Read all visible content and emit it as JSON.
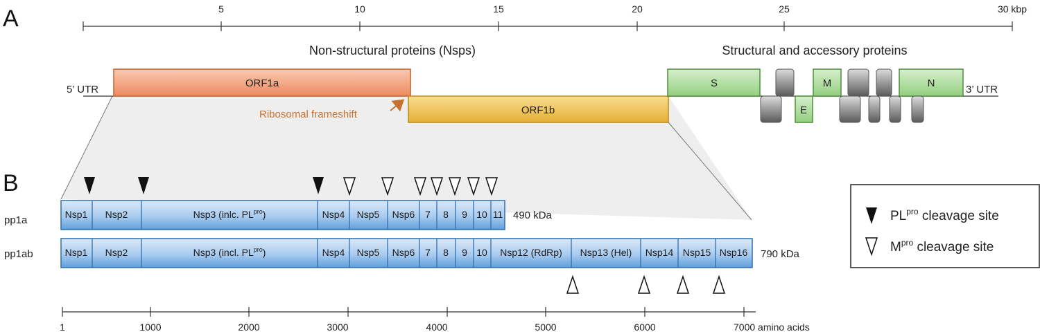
{
  "panels": {
    "a": "A",
    "b": "B"
  },
  "genome_axis": {
    "unit_label": "30 kbp",
    "ticks": [
      "5",
      "10",
      "15",
      "20",
      "25"
    ]
  },
  "regions": {
    "nonstructural": "Non-structural proteins (Nsps)",
    "structural": "Structural and accessory proteins"
  },
  "utr": {
    "five": "5’ UTR",
    "three": "3’ UTR"
  },
  "orfs": {
    "orf1a": "ORF1a",
    "orf1b": "ORF1b",
    "s": "S",
    "e": "E",
    "m": "M",
    "n": "N"
  },
  "frameshift_label": "Ribosomal frameshift",
  "polyproteins": {
    "pp1a": {
      "label": "pp1a",
      "mass": "490 kDa",
      "segments": [
        "Nsp1",
        "Nsp2",
        "Nsp3 (inlc. PL",
        "Nsp4",
        "Nsp5",
        "Nsp6",
        "7",
        "8",
        "9",
        "10",
        "11"
      ]
    },
    "pp1ab": {
      "label": "pp1ab",
      "mass": "790 kDa",
      "segments": [
        "Nsp1",
        "Nsp2",
        "Nsp3 (incl. PL",
        "Nsp4",
        "Nsp5",
        "Nsp6",
        "7",
        "8",
        "9",
        "10",
        "Nsp12 (RdRp)",
        "Nsp13 (Hel)",
        "Nsp14",
        "Nsp15",
        "Nsp16"
      ]
    },
    "pro_superscript": "pro",
    "close_paren": ")"
  },
  "legend": {
    "pl_prefix": "PL",
    "pl_sup": "pro",
    "pl_suffix": " cleavage site",
    "m_prefix": "M",
    "m_sup": "pro",
    "m_suffix": " cleavage site"
  },
  "aa_axis": {
    "ticks": [
      "1",
      "1000",
      "2000",
      "3000",
      "4000",
      "5000",
      "6000"
    ],
    "last_tick": "7000 amino acids"
  },
  "colors": {
    "orf1a": "#f08a60",
    "orf1b": "#e9b43b",
    "structural": "#7fc36e",
    "accessory": "#8c8c8c",
    "nsp": "#5b9bd5",
    "frameshift": "#c8712e"
  }
}
